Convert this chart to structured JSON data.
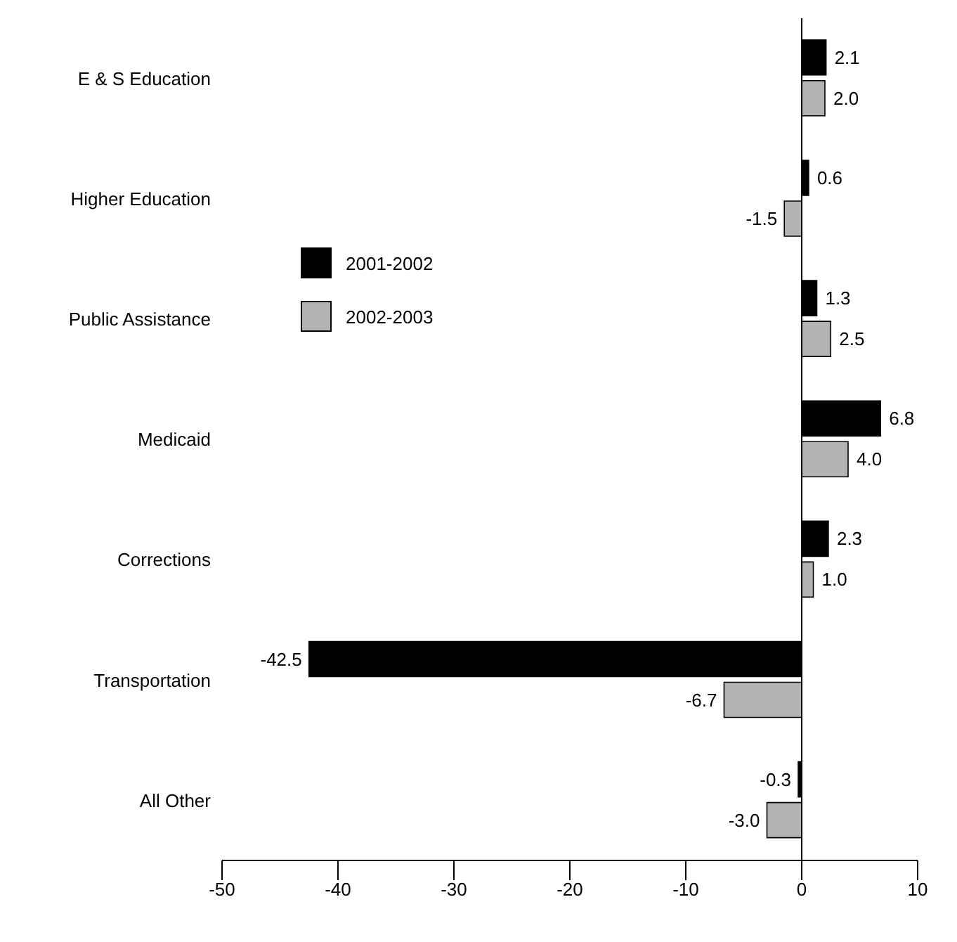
{
  "chart_data": {
    "type": "bar",
    "orientation": "horizontal",
    "categories": [
      "E & S Education",
      "Higher Education",
      "Public Assistance",
      "Medicaid",
      "Corrections",
      "Transportation",
      "All Other"
    ],
    "series": [
      {
        "name": "2001-2002",
        "color": "#000000",
        "values": [
          2.1,
          0.6,
          1.3,
          6.8,
          2.3,
          -42.5,
          -0.3
        ],
        "value_labels": [
          "2.1",
          "0.6",
          "1.3",
          "6.8",
          "2.3",
          "-42.5",
          "-0.3"
        ]
      },
      {
        "name": "2002-2003",
        "color": "#b3b3b3",
        "values": [
          2.0,
          -1.5,
          2.5,
          4.0,
          1.0,
          -6.7,
          -3.0
        ],
        "value_labels": [
          "2.0",
          "-1.5",
          "2.5",
          "4.0",
          "1.0",
          "-6.7",
          "-3.0"
        ]
      }
    ],
    "xlim": [
      -50,
      10
    ],
    "xticks": [
      -50,
      -40,
      -30,
      -20,
      -10,
      0,
      10
    ],
    "ref_lines": [
      {
        "axis": "x",
        "value": 0,
        "color": "#000000"
      }
    ],
    "legend": "left"
  }
}
